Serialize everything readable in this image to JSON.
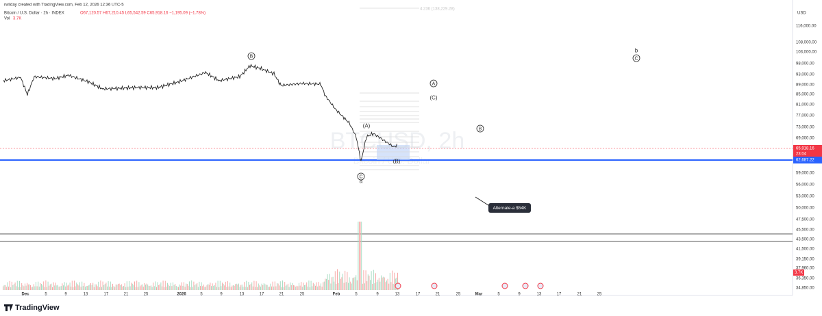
{
  "header": {
    "attribution": "rwilday created with TradingView.com, Feb 12, 2026 12:36 UTC-5",
    "symbol": "Bitcoin / U.S. Dollar · 2h · INDEX",
    "ohlc": "O67,120.57 H67,210.45 L65,542.59 C65,918.16 −1,195.09 (−1.78%)",
    "volume_label": "Vol",
    "volume": "3.7K"
  },
  "price_axis": {
    "currency": "USD",
    "labels": [
      "116,000.00",
      "108,000.00",
      "103,000.00",
      "98,000.00",
      "93,000.00",
      "89,000.00",
      "85,000.00",
      "81,000.00",
      "77,000.00",
      "73,000.00",
      "69,000.00",
      "59,000.00",
      "56,000.00",
      "53,000.00",
      "50,000.00",
      "47,500.00",
      "45,500.00",
      "43,500.00",
      "41,500.00",
      "39,150.00",
      "37,960.00",
      "36,350.00",
      "34,850.00"
    ],
    "current_price": "65,918.16",
    "countdown": "23:04",
    "line_price": "62,687.22",
    "volume_badge": "3.7K"
  },
  "time_axis": {
    "labels": [
      "Dec",
      "5",
      "9",
      "13",
      "17",
      "21",
      "25",
      "2026",
      "5",
      "9",
      "13",
      "17",
      "21",
      "25",
      "Feb",
      "5",
      "9",
      "13",
      "17",
      "21",
      "25",
      "Mar",
      "5",
      "9",
      "13",
      "17",
      "21",
      "25"
    ]
  },
  "annotations": {
    "wave_labels": [
      {
        "text": "B",
        "style": "circled"
      },
      {
        "text": "b",
        "style": "plain"
      },
      {
        "text": "C",
        "style": "circled"
      },
      {
        "text": "A",
        "style": "circled"
      },
      {
        "text": "(C)",
        "style": "plain"
      },
      {
        "text": "(A)",
        "style": "plain"
      },
      {
        "text": "B",
        "style": "circled"
      },
      {
        "text": "(B)",
        "style": "plain"
      },
      {
        "text": "C",
        "style": "circled"
      },
      {
        "text": "a",
        "style": "plain"
      }
    ],
    "callout": "Alternate-a $54K",
    "fib_top": "4.236 (138,229.28)"
  },
  "watermark": {
    "symbol": "BTCUSD, 2h",
    "name": "Bitcoin / U.S. Dollar"
  },
  "footer": {
    "brand": "TradingView"
  }
}
